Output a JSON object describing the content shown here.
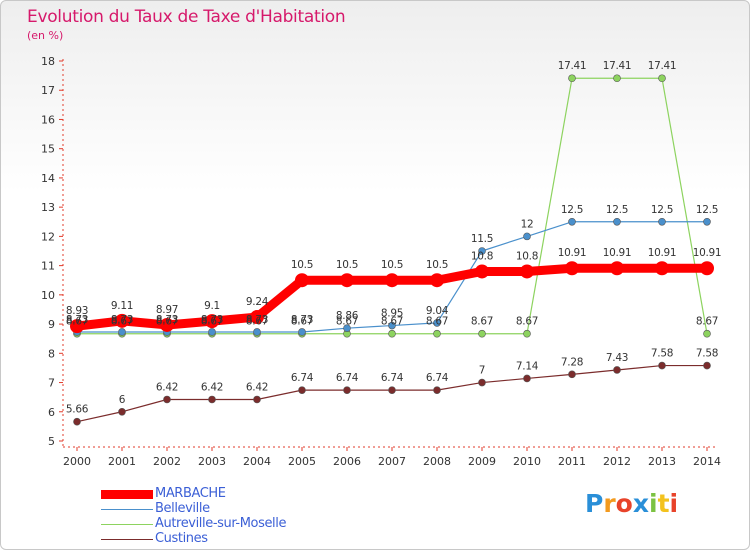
{
  "chart_data": {
    "type": "line",
    "title": "Evolution du Taux de Taxe d'Habitation",
    "xlabel": "",
    "ylabel": "(en %)",
    "ylim": [
      5,
      18
    ],
    "yticks": [
      5,
      6,
      7,
      8,
      9,
      10,
      11,
      12,
      13,
      14,
      15,
      16,
      17,
      18
    ],
    "x": [
      "2000",
      "2001",
      "2002",
      "2003",
      "2004",
      "2005",
      "2006",
      "2007",
      "2008",
      "2009",
      "2010",
      "2011",
      "2012",
      "2013",
      "2014"
    ],
    "grid": false,
    "legend_position": "bottom-left",
    "series": [
      {
        "name": "MARBACHE",
        "color": "#ff0000",
        "values": [
          8.93,
          9.11,
          8.97,
          9.1,
          9.24,
          10.5,
          10.5,
          10.5,
          10.5,
          10.8,
          10.8,
          10.91,
          10.91,
          10.91,
          10.91
        ],
        "labels": [
          "8.93",
          "9.11",
          "8.97",
          "9.1",
          "9.24",
          "10.5",
          "10.5",
          "10.5",
          "10.5",
          "10.8",
          "10.8",
          "10.91",
          "10.91",
          "10.91",
          "10.91"
        ]
      },
      {
        "name": "Belleville",
        "color": "#4a90cc",
        "values": [
          8.73,
          8.73,
          8.73,
          8.73,
          8.73,
          8.73,
          8.86,
          8.95,
          9.04,
          11.5,
          12,
          12.5,
          12.5,
          12.5,
          12.5
        ],
        "labels": [
          "8.73",
          "8.73",
          "8.73",
          "8.73",
          "8.73",
          "8.73",
          "8.86",
          "8.95",
          "9.04",
          "11.5",
          "12",
          "12.5",
          "12.5",
          "12.5",
          "12.5"
        ]
      },
      {
        "name": "Autreville-sur-Moselle",
        "color": "#8dd35f",
        "values": [
          8.67,
          8.67,
          8.67,
          8.67,
          8.67,
          8.67,
          8.67,
          8.67,
          8.67,
          8.67,
          8.67,
          17.41,
          17.41,
          17.41,
          8.67
        ],
        "labels": [
          "8.67",
          "8.67",
          "8.67",
          "8.67",
          "8.67",
          "8.67",
          "8.67",
          "8.67",
          "8.67",
          "8.67",
          "8.67",
          "17.41",
          "17.41",
          "17.41",
          "8.67"
        ]
      },
      {
        "name": "Custines",
        "color": "#7b2c2c",
        "values": [
          5.66,
          6,
          6.42,
          6.42,
          6.42,
          6.74,
          6.74,
          6.74,
          6.74,
          7,
          7.14,
          7.28,
          7.43,
          7.58,
          7.58
        ],
        "labels": [
          "5.66",
          "6",
          "6.42",
          "6.42",
          "6.42",
          "6.74",
          "6.74",
          "6.74",
          "6.74",
          "7",
          "7.14",
          "7.28",
          "7.43",
          "7.58",
          "7.58"
        ]
      }
    ]
  },
  "logo_text": "Proxiti"
}
